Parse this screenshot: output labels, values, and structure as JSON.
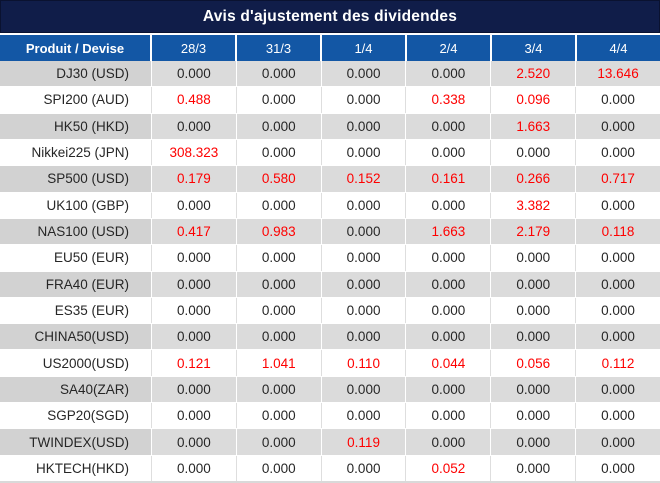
{
  "title": "Avis d'ajustement des dividendes",
  "table": {
    "product_header": "Produit / Devise",
    "date_columns": [
      "28/3",
      "31/3",
      "1/4",
      "2/4",
      "3/4",
      "4/4"
    ],
    "rows": [
      {
        "product": "DJ30 (USD)",
        "values": [
          "0.000",
          "0.000",
          "0.000",
          "0.000",
          "2.520",
          "13.646"
        ],
        "red": [
          4,
          5
        ]
      },
      {
        "product": "SPI200 (AUD)",
        "values": [
          "0.488",
          "0.000",
          "0.000",
          "0.338",
          "0.096",
          "0.000"
        ],
        "red": [
          0,
          3,
          4
        ]
      },
      {
        "product": "HK50 (HKD)",
        "values": [
          "0.000",
          "0.000",
          "0.000",
          "0.000",
          "1.663",
          "0.000"
        ],
        "red": [
          4
        ]
      },
      {
        "product": "Nikkei225 (JPN)",
        "values": [
          "308.323",
          "0.000",
          "0.000",
          "0.000",
          "0.000",
          "0.000"
        ],
        "red": [
          0
        ]
      },
      {
        "product": "SP500 (USD)",
        "values": [
          "0.179",
          "0.580",
          "0.152",
          "0.161",
          "0.266",
          "0.717"
        ],
        "red": [
          0,
          1,
          2,
          3,
          4,
          5
        ]
      },
      {
        "product": "UK100 (GBP)",
        "values": [
          "0.000",
          "0.000",
          "0.000",
          "0.000",
          "3.382",
          "0.000"
        ],
        "red": [
          4
        ]
      },
      {
        "product": "NAS100 (USD)",
        "values": [
          "0.417",
          "0.983",
          "0.000",
          "1.663",
          "2.179",
          "0.118"
        ],
        "red": [
          0,
          1,
          3,
          4,
          5
        ]
      },
      {
        "product": "EU50 (EUR)",
        "values": [
          "0.000",
          "0.000",
          "0.000",
          "0.000",
          "0.000",
          "0.000"
        ],
        "red": []
      },
      {
        "product": "FRA40 (EUR)",
        "values": [
          "0.000",
          "0.000",
          "0.000",
          "0.000",
          "0.000",
          "0.000"
        ],
        "red": []
      },
      {
        "product": "ES35 (EUR)",
        "values": [
          "0.000",
          "0.000",
          "0.000",
          "0.000",
          "0.000",
          "0.000"
        ],
        "red": []
      },
      {
        "product": "CHINA50(USD)",
        "values": [
          "0.000",
          "0.000",
          "0.000",
          "0.000",
          "0.000",
          "0.000"
        ],
        "red": []
      },
      {
        "product": "US2000(USD)",
        "values": [
          "0.121",
          "1.041",
          "0.110",
          "0.044",
          "0.056",
          "0.112"
        ],
        "red": [
          0,
          1,
          2,
          3,
          4,
          5
        ]
      },
      {
        "product": "SA40(ZAR)",
        "values": [
          "0.000",
          "0.000",
          "0.000",
          "0.000",
          "0.000",
          "0.000"
        ],
        "red": []
      },
      {
        "product": "SGP20(SGD)",
        "values": [
          "0.000",
          "0.000",
          "0.000",
          "0.000",
          "0.000",
          "0.000"
        ],
        "red": []
      },
      {
        "product": "TWINDEX(USD)",
        "values": [
          "0.000",
          "0.000",
          "0.119",
          "0.000",
          "0.000",
          "0.000"
        ],
        "red": [
          2
        ]
      },
      {
        "product": "HKTECH(HKD)",
        "values": [
          "0.000",
          "0.000",
          "0.000",
          "0.052",
          "0.000",
          "0.000"
        ],
        "red": [
          3
        ]
      }
    ]
  },
  "colors": {
    "title_bg": "#101d49",
    "header_bg": "#1357a5",
    "alt_product_bg": "#d2d2d2",
    "alt_val_bg": "#dbdbdb",
    "value_red": "#fe0000",
    "text_dark": "#262626"
  },
  "chart_data": {
    "type": "table",
    "title": "Avis d'ajustement des dividendes",
    "columns": [
      "Produit / Devise",
      "28/3",
      "31/3",
      "1/4",
      "2/4",
      "3/4",
      "4/4"
    ],
    "rows": [
      [
        "DJ30 (USD)",
        0.0,
        0.0,
        0.0,
        0.0,
        2.52,
        13.646
      ],
      [
        "SPI200 (AUD)",
        0.488,
        0.0,
        0.0,
        0.338,
        0.096,
        0.0
      ],
      [
        "HK50 (HKD)",
        0.0,
        0.0,
        0.0,
        0.0,
        1.663,
        0.0
      ],
      [
        "Nikkei225 (JPN)",
        308.323,
        0.0,
        0.0,
        0.0,
        0.0,
        0.0
      ],
      [
        "SP500 (USD)",
        0.179,
        0.58,
        0.152,
        0.161,
        0.266,
        0.717
      ],
      [
        "UK100 (GBP)",
        0.0,
        0.0,
        0.0,
        0.0,
        3.382,
        0.0
      ],
      [
        "NAS100 (USD)",
        0.417,
        0.983,
        0.0,
        1.663,
        2.179,
        0.118
      ],
      [
        "EU50 (EUR)",
        0.0,
        0.0,
        0.0,
        0.0,
        0.0,
        0.0
      ],
      [
        "FRA40 (EUR)",
        0.0,
        0.0,
        0.0,
        0.0,
        0.0,
        0.0
      ],
      [
        "ES35 (EUR)",
        0.0,
        0.0,
        0.0,
        0.0,
        0.0,
        0.0
      ],
      [
        "CHINA50(USD)",
        0.0,
        0.0,
        0.0,
        0.0,
        0.0,
        0.0
      ],
      [
        "US2000(USD)",
        0.121,
        1.041,
        0.11,
        0.044,
        0.056,
        0.112
      ],
      [
        "SA40(ZAR)",
        0.0,
        0.0,
        0.0,
        0.0,
        0.0,
        0.0
      ],
      [
        "SGP20(SGD)",
        0.0,
        0.0,
        0.0,
        0.0,
        0.0,
        0.0
      ],
      [
        "TWINDEX(USD)",
        0.0,
        0.0,
        0.119,
        0.0,
        0.0,
        0.0
      ],
      [
        "HKTECH(HKD)",
        0.0,
        0.0,
        0.0,
        0.052,
        0.0,
        0.0
      ]
    ],
    "notes": "Red cells indicate non-zero dividend adjustments highlighted in red in the source table"
  }
}
